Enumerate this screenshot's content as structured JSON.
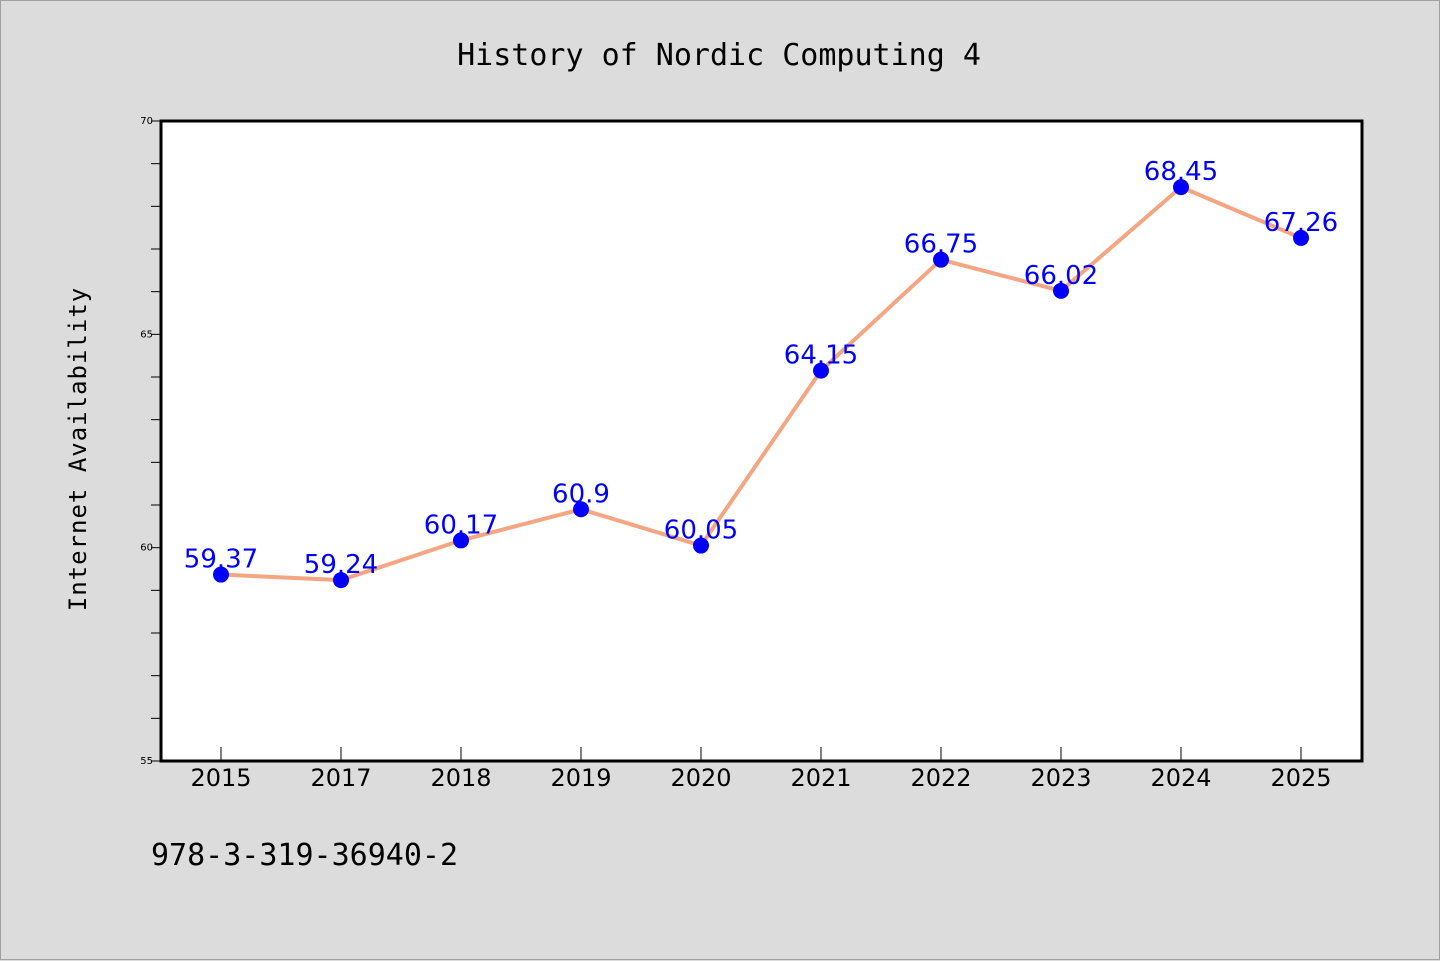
{
  "chart_data": {
    "type": "line",
    "title": "History of Nordic Computing 4",
    "xlabel": "",
    "ylabel": "Internet Availability",
    "categories": [
      "2015",
      "2017",
      "2018",
      "2019",
      "2020",
      "2021",
      "2022",
      "2023",
      "2024",
      "2025"
    ],
    "series": [
      {
        "values": [
          59.37,
          59.24,
          60.17,
          60.9,
          60.05,
          64.15,
          66.75,
          66.02,
          68.45,
          67.26
        ],
        "labels": [
          "59.37",
          "59.24",
          "60.17",
          "60.9",
          "60.05",
          "64.15",
          "66.75",
          "66.02",
          "68.45",
          "67.26"
        ],
        "line_color": "#f4a582",
        "marker_color": "#0000ff"
      }
    ],
    "ylim": [
      55,
      70
    ],
    "yticks": [
      "55",
      "60",
      "65",
      "70"
    ],
    "grid": false,
    "legend": "none"
  },
  "footer": {
    "isbn": "978-3-319-36940-2"
  },
  "colors": {
    "background": "#dcdcdc",
    "plot_background": "#ffffff",
    "label_color": "#0000ff"
  }
}
